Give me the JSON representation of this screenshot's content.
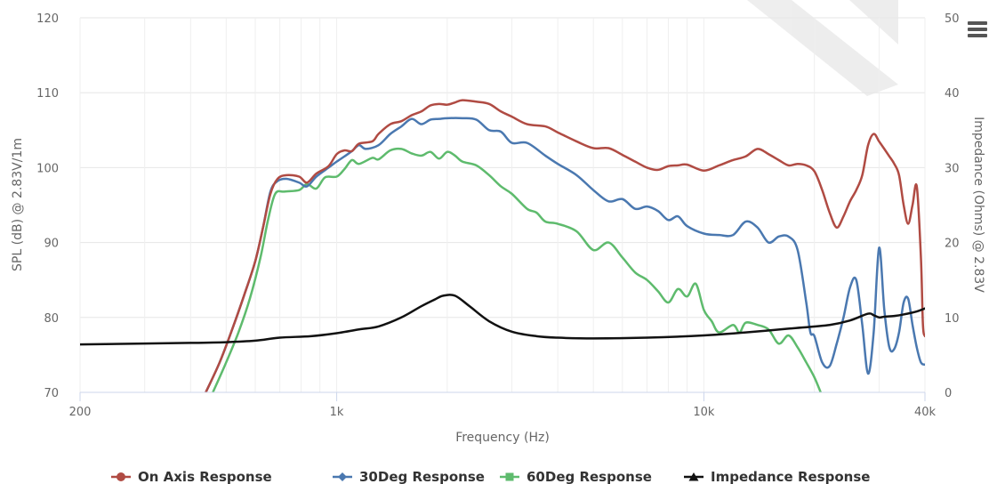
{
  "chart_data": {
    "type": "line",
    "title": "",
    "xlabel": "Frequency (Hz)",
    "ylabel": "SPL (dB) @ 2.83V/1m",
    "y2label": "Impedance (Ohms) @ 2.83V",
    "x_scale": "log",
    "xlim": [
      200,
      40000
    ],
    "ylim": [
      70,
      120
    ],
    "y2lim": [
      0,
      50
    ],
    "grid": true,
    "legend_position": "bottom-center",
    "x_ticks": [
      {
        "value": 200,
        "label": "200"
      },
      {
        "value": 1000,
        "label": "1k"
      },
      {
        "value": 10000,
        "label": "10k"
      },
      {
        "value": 40000,
        "label": "40k"
      }
    ],
    "y_ticks": [
      70,
      80,
      90,
      100,
      110,
      120
    ],
    "y2_ticks": [
      0,
      10,
      20,
      30,
      40,
      50
    ],
    "series": [
      {
        "name": "On Axis Response",
        "color": "#b04b43",
        "marker": "circle",
        "axis": "left",
        "points": [
          [
            440,
            70
          ],
          [
            480,
            74
          ],
          [
            520,
            78.5
          ],
          [
            560,
            83
          ],
          [
            600,
            87.5
          ],
          [
            630,
            92
          ],
          [
            660,
            96.5
          ],
          [
            690,
            98.5
          ],
          [
            730,
            99
          ],
          [
            790,
            98.8
          ],
          [
            830,
            98
          ],
          [
            880,
            99.2
          ],
          [
            950,
            100.2
          ],
          [
            1000,
            101.8
          ],
          [
            1050,
            102.3
          ],
          [
            1100,
            102.2
          ],
          [
            1150,
            103.2
          ],
          [
            1250,
            103.5
          ],
          [
            1300,
            104.5
          ],
          [
            1400,
            105.8
          ],
          [
            1500,
            106.2
          ],
          [
            1600,
            107
          ],
          [
            1700,
            107.5
          ],
          [
            1800,
            108.3
          ],
          [
            1900,
            108.5
          ],
          [
            2000,
            108.4
          ],
          [
            2100,
            108.7
          ],
          [
            2200,
            109
          ],
          [
            2400,
            108.8
          ],
          [
            2600,
            108.5
          ],
          [
            2800,
            107.5
          ],
          [
            3000,
            106.8
          ],
          [
            3300,
            105.8
          ],
          [
            3700,
            105.5
          ],
          [
            4000,
            104.7
          ],
          [
            4500,
            103.5
          ],
          [
            5000,
            102.6
          ],
          [
            5500,
            102.6
          ],
          [
            6000,
            101.7
          ],
          [
            6500,
            100.8
          ],
          [
            7000,
            100
          ],
          [
            7500,
            99.7
          ],
          [
            8000,
            100.2
          ],
          [
            8500,
            100.3
          ],
          [
            9000,
            100.4
          ],
          [
            10000,
            99.6
          ],
          [
            11000,
            100.3
          ],
          [
            12000,
            101
          ],
          [
            13000,
            101.5
          ],
          [
            14000,
            102.5
          ],
          [
            15000,
            101.8
          ],
          [
            16000,
            101
          ],
          [
            17000,
            100.3
          ],
          [
            18000,
            100.5
          ],
          [
            19000,
            100.3
          ],
          [
            20000,
            99.5
          ],
          [
            21000,
            97
          ],
          [
            22000,
            94
          ],
          [
            23000,
            92
          ],
          [
            24000,
            93.5
          ],
          [
            25000,
            95.5
          ],
          [
            26000,
            97
          ],
          [
            27000,
            99
          ],
          [
            28000,
            103
          ],
          [
            29000,
            104.5
          ],
          [
            30000,
            103.5
          ],
          [
            31000,
            102.5
          ],
          [
            32000,
            101.5
          ],
          [
            33000,
            100.5
          ],
          [
            34000,
            99
          ],
          [
            35000,
            95
          ],
          [
            36000,
            92.5
          ],
          [
            37000,
            95
          ],
          [
            38000,
            97.5
          ],
          [
            39000,
            88
          ],
          [
            39500,
            79
          ],
          [
            40000,
            77.5
          ]
        ]
      },
      {
        "name": "30Deg Response",
        "color": "#4a78b0",
        "marker": "diamond",
        "axis": "left",
        "points": [
          [
            440,
            70
          ],
          [
            480,
            74
          ],
          [
            520,
            78.5
          ],
          [
            560,
            83
          ],
          [
            600,
            87.5
          ],
          [
            630,
            92
          ],
          [
            660,
            96.8
          ],
          [
            690,
            98.2
          ],
          [
            730,
            98.5
          ],
          [
            790,
            98
          ],
          [
            830,
            97.5
          ],
          [
            880,
            98.8
          ],
          [
            950,
            100
          ],
          [
            1000,
            100.8
          ],
          [
            1050,
            101.5
          ],
          [
            1100,
            102.2
          ],
          [
            1150,
            103
          ],
          [
            1200,
            102.5
          ],
          [
            1300,
            103
          ],
          [
            1400,
            104.5
          ],
          [
            1500,
            105.5
          ],
          [
            1600,
            106.5
          ],
          [
            1700,
            105.8
          ],
          [
            1800,
            106.4
          ],
          [
            1900,
            106.5
          ],
          [
            2000,
            106.6
          ],
          [
            2200,
            106.6
          ],
          [
            2400,
            106.4
          ],
          [
            2600,
            105
          ],
          [
            2800,
            104.8
          ],
          [
            3000,
            103.3
          ],
          [
            3300,
            103.3
          ],
          [
            3700,
            101.6
          ],
          [
            4000,
            100.5
          ],
          [
            4500,
            99
          ],
          [
            5000,
            97
          ],
          [
            5500,
            95.5
          ],
          [
            6000,
            95.8
          ],
          [
            6500,
            94.5
          ],
          [
            7000,
            94.8
          ],
          [
            7500,
            94.2
          ],
          [
            8000,
            93
          ],
          [
            8500,
            93.5
          ],
          [
            9000,
            92.2
          ],
          [
            10000,
            91.2
          ],
          [
            11000,
            91
          ],
          [
            12000,
            91
          ],
          [
            13000,
            92.8
          ],
          [
            14000,
            92
          ],
          [
            15000,
            90
          ],
          [
            16000,
            90.8
          ],
          [
            17000,
            90.8
          ],
          [
            18000,
            89
          ],
          [
            19000,
            82
          ],
          [
            19500,
            78
          ],
          [
            20000,
            77.5
          ],
          [
            21000,
            74
          ],
          [
            22000,
            73.5
          ],
          [
            23000,
            76.5
          ],
          [
            24000,
            80
          ],
          [
            25000,
            84
          ],
          [
            26000,
            85
          ],
          [
            27000,
            79
          ],
          [
            28000,
            72.5
          ],
          [
            29000,
            78
          ],
          [
            30000,
            89.3
          ],
          [
            31000,
            81
          ],
          [
            32000,
            76
          ],
          [
            33000,
            75.8
          ],
          [
            34000,
            78
          ],
          [
            35000,
            82
          ],
          [
            36000,
            82.5
          ],
          [
            37000,
            79
          ],
          [
            38000,
            76
          ],
          [
            39000,
            74
          ],
          [
            40000,
            73.7
          ]
        ]
      },
      {
        "name": "60Deg Response",
        "color": "#5ebb6d",
        "marker": "square",
        "axis": "left",
        "points": [
          [
            460,
            70
          ],
          [
            500,
            74
          ],
          [
            540,
            78
          ],
          [
            580,
            82.5
          ],
          [
            620,
            88
          ],
          [
            650,
            93
          ],
          [
            680,
            96.5
          ],
          [
            720,
            96.8
          ],
          [
            790,
            97
          ],
          [
            830,
            97.8
          ],
          [
            880,
            97.2
          ],
          [
            930,
            98.7
          ],
          [
            1000,
            98.8
          ],
          [
            1050,
            99.8
          ],
          [
            1100,
            101
          ],
          [
            1150,
            100.5
          ],
          [
            1250,
            101.3
          ],
          [
            1300,
            101.1
          ],
          [
            1400,
            102.3
          ],
          [
            1500,
            102.5
          ],
          [
            1600,
            101.9
          ],
          [
            1700,
            101.6
          ],
          [
            1800,
            102.1
          ],
          [
            1900,
            101.2
          ],
          [
            2000,
            102.1
          ],
          [
            2100,
            101.6
          ],
          [
            2200,
            100.8
          ],
          [
            2400,
            100.3
          ],
          [
            2600,
            99
          ],
          [
            2800,
            97.5
          ],
          [
            3000,
            96.5
          ],
          [
            3300,
            94.5
          ],
          [
            3500,
            94
          ],
          [
            3700,
            92.8
          ],
          [
            4000,
            92.5
          ],
          [
            4500,
            91.5
          ],
          [
            5000,
            89
          ],
          [
            5500,
            90
          ],
          [
            6000,
            88
          ],
          [
            6500,
            86
          ],
          [
            7000,
            85
          ],
          [
            7500,
            83.5
          ],
          [
            8000,
            82
          ],
          [
            8500,
            83.8
          ],
          [
            9000,
            82.8
          ],
          [
            9500,
            84.5
          ],
          [
            10000,
            81
          ],
          [
            10500,
            79.5
          ],
          [
            11000,
            78
          ],
          [
            12000,
            79
          ],
          [
            12500,
            78
          ],
          [
            13000,
            79.3
          ],
          [
            14000,
            79
          ],
          [
            15000,
            78.4
          ],
          [
            16000,
            76.5
          ],
          [
            17000,
            77.6
          ],
          [
            18000,
            76
          ],
          [
            19000,
            74
          ],
          [
            20000,
            72
          ],
          [
            20800,
            70
          ]
        ]
      },
      {
        "name": "Impedance Response",
        "color": "#111111",
        "marker": "triangle",
        "axis": "right",
        "points": [
          [
            200,
            6.4
          ],
          [
            400,
            6.6
          ],
          [
            500,
            6.7
          ],
          [
            600,
            6.9
          ],
          [
            700,
            7.3
          ],
          [
            850,
            7.5
          ],
          [
            1000,
            7.9
          ],
          [
            1150,
            8.4
          ],
          [
            1300,
            8.8
          ],
          [
            1500,
            10
          ],
          [
            1700,
            11.5
          ],
          [
            1850,
            12.4
          ],
          [
            1950,
            12.9
          ],
          [
            2100,
            12.9
          ],
          [
            2300,
            11.5
          ],
          [
            2600,
            9.5
          ],
          [
            3000,
            8.1
          ],
          [
            3500,
            7.5
          ],
          [
            4000,
            7.3
          ],
          [
            5000,
            7.2
          ],
          [
            7000,
            7.3
          ],
          [
            10000,
            7.6
          ],
          [
            13000,
            8
          ],
          [
            17000,
            8.5
          ],
          [
            22000,
            9
          ],
          [
            25000,
            9.6
          ],
          [
            28000,
            10.5
          ],
          [
            29000,
            10.3
          ],
          [
            30000,
            10
          ],
          [
            31000,
            10.1
          ],
          [
            33000,
            10.2
          ],
          [
            35000,
            10.4
          ],
          [
            38000,
            10.8
          ],
          [
            40000,
            11.2
          ]
        ]
      }
    ]
  }
}
